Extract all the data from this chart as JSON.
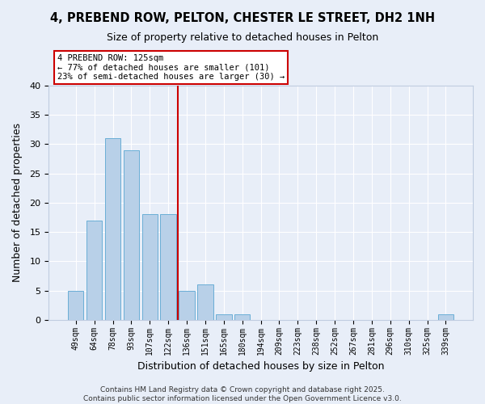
{
  "title": "4, PREBEND ROW, PELTON, CHESTER LE STREET, DH2 1NH",
  "subtitle": "Size of property relative to detached houses in Pelton",
  "xlabel": "Distribution of detached houses by size in Pelton",
  "ylabel": "Number of detached properties",
  "bin_labels": [
    "49sqm",
    "64sqm",
    "78sqm",
    "93sqm",
    "107sqm",
    "122sqm",
    "136sqm",
    "151sqm",
    "165sqm",
    "180sqm",
    "194sqm",
    "209sqm",
    "223sqm",
    "238sqm",
    "252sqm",
    "267sqm",
    "281sqm",
    "296sqm",
    "310sqm",
    "325sqm",
    "339sqm"
  ],
  "bar_values": [
    5,
    17,
    31,
    29,
    18,
    18,
    5,
    6,
    1,
    1,
    0,
    0,
    0,
    0,
    0,
    0,
    0,
    0,
    0,
    0,
    1
  ],
  "bar_color": "#b8d0e8",
  "bar_edgecolor": "#6aaed6",
  "vline_bin_index": 5,
  "vline_color": "#cc0000",
  "annotation_text": "4 PREBEND ROW: 125sqm\n← 77% of detached houses are smaller (101)\n23% of semi-detached houses are larger (30) →",
  "annotation_box_edgecolor": "#cc0000",
  "annotation_box_facecolor": "#ffffff",
  "ylim": [
    0,
    40
  ],
  "yticks": [
    0,
    5,
    10,
    15,
    20,
    25,
    30,
    35,
    40
  ],
  "background_color": "#e8eef8",
  "plot_bg_color": "#e8eef8",
  "grid_color": "#ffffff",
  "footer_line1": "Contains HM Land Registry data © Crown copyright and database right 2025.",
  "footer_line2": "Contains public sector information licensed under the Open Government Licence v3.0."
}
